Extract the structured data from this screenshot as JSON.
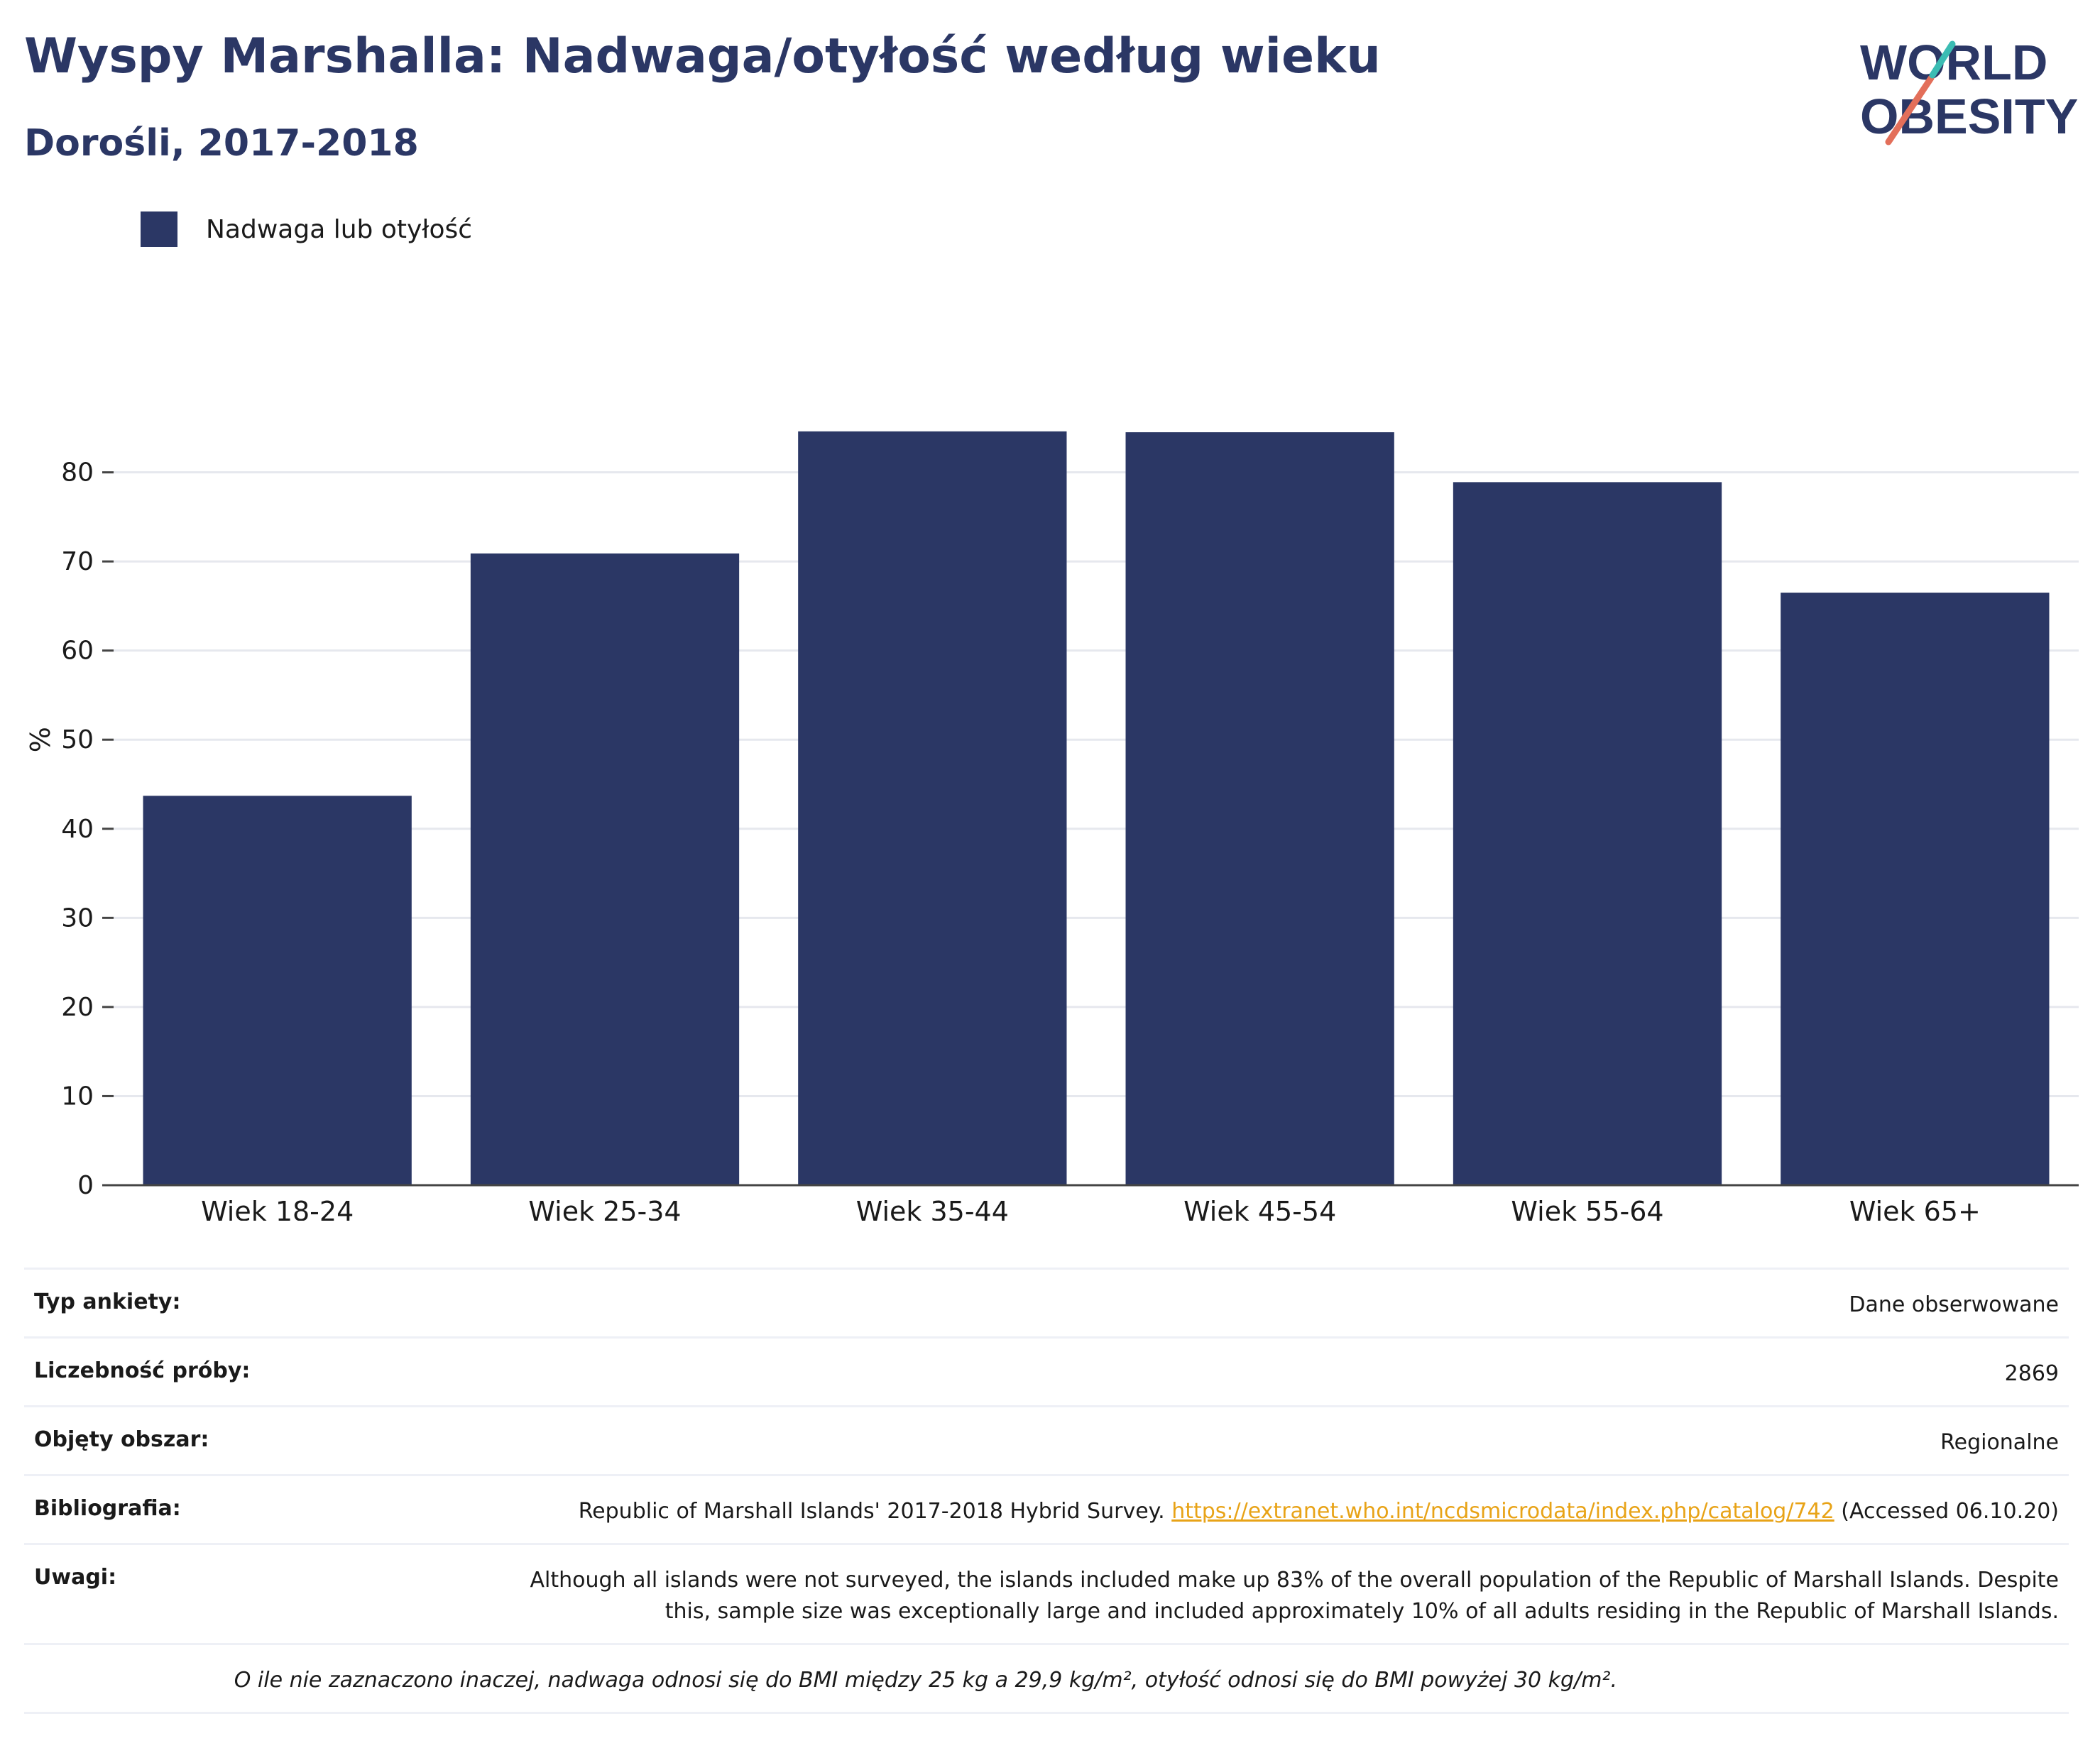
{
  "header": {
    "title": "Wyspy Marshalla: Nadwaga/otyłość według wieku",
    "subtitle": "Dorośli, 2017-2018"
  },
  "logo": {
    "line1": "WORLD",
    "line2": "OBESITY"
  },
  "chart_data": {
    "type": "bar",
    "categories": [
      "Wiek 18-24",
      "Wiek 25-34",
      "Wiek 35-44",
      "Wiek 45-54",
      "Wiek 55-64",
      "Wiek 65+"
    ],
    "series": [
      {
        "name": "Nadwaga lub otyłość",
        "values": [
          43.7,
          70.9,
          84.6,
          84.5,
          78.9,
          66.5
        ]
      }
    ],
    "ylabel": "%",
    "ylim": [
      0,
      90
    ],
    "yticks": [
      0,
      10,
      20,
      30,
      40,
      50,
      60,
      70,
      80
    ],
    "grid": true,
    "legend_position": "top-left",
    "colors": {
      "bar": "#2b3765",
      "grid": "#e6e8ee",
      "axis": "#444444"
    }
  },
  "meta": {
    "rows": [
      {
        "key": "Typ ankiety:",
        "value": "Dane obserwowane"
      },
      {
        "key": "Liczebność próby:",
        "value": "2869"
      },
      {
        "key": "Objęty obszar:",
        "value": "Regionalne"
      }
    ],
    "bibliography": {
      "key": "Bibliografia:",
      "text_before": "Republic of Marshall Islands' 2017-2018 Hybrid Survey. ",
      "link": "https://extranet.who.int/ncdsmicrodata/index.php/catalog/742",
      "text_after": " (Accessed 06.10.20)"
    },
    "notes": {
      "key": "Uwagi:",
      "value": "Although all islands were not surveyed, the islands included make up 83% of the overall population of the Republic of Marshall Islands. Despite this, sample size was exceptionally large and included approximately 10% of all adults residing in the Republic of Marshall Islands."
    },
    "footnote": "O ile nie zaznaczono inaczej, nadwaga odnosi się do BMI między 25 kg a 29,9 kg/m², otyłość odnosi się do BMI powyżej 30 kg/m²."
  }
}
